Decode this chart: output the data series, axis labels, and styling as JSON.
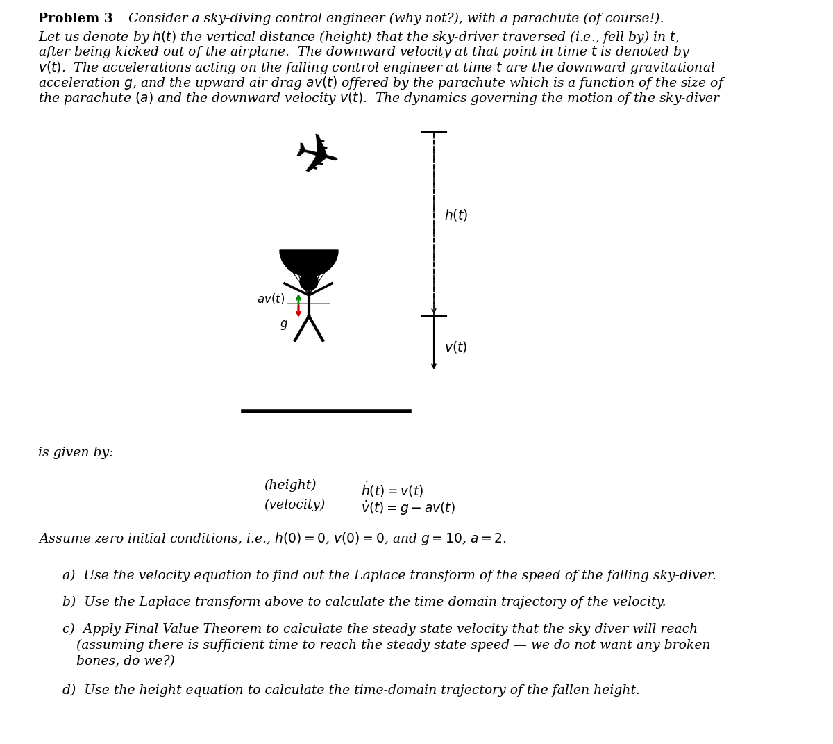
{
  "bg_color": "#ffffff",
  "text_color": "#000000",
  "arrow_up_color": "#008800",
  "arrow_down_color": "#cc0000",
  "title_bold": "Problem 3",
  "title_italic": "        Consider a sky-diving control engineer (why not?), with a parachute (of course!).",
  "para_lines": [
    "Let us denote by $h(t)$ the vertical distance (height) that the sky-driver traversed (i.e., fell by) in $t$,",
    "after being kicked out of the airplane.  The downward velocity at that point in time $t$ is denoted by",
    "$v(t)$.  The accelerations acting on the falling control engineer at time $t$ are the downward gravitational",
    "acceleration $g$, and the upward air-drag $av(t)$ offered by the parachute which is a function of the size of",
    "the parachute $(a)$ and the downward velocity $v(t)$.  The dynamics governing the motion of the sky-diver"
  ],
  "is_given_by": "is given by:",
  "eq_height_label": "(height)",
  "eq_height": "$\\dot{h}(t) = v(t)$",
  "eq_velocity_label": "(velocity)",
  "eq_velocity": "$\\dot{v}(t) = g - av(t)$",
  "assume_line": "Assume zero initial conditions, i.e., $h(0) = 0$, $v(0) = 0$, and $g = 10$, $a = 2$.",
  "part_a": "a)  Use the velocity equation to find out the Laplace transform of the speed of the falling sky-diver.",
  "part_b": "b)  Use the Laplace transform above to calculate the time-domain trajectory of the velocity.",
  "part_c1": "c)  Apply Final Value Theorem to calculate the steady-state velocity that the sky-diver will reach",
  "part_c2": "(assuming there is sufficient time to reach the steady-state speed — we do not want any broken",
  "part_c3": "bones, do we?)",
  "part_d": "d)  Use the height equation to calculate the time-domain trajectory of the fallen height.",
  "fontsize_main": 13.5,
  "fontsize_eq": 13.5
}
